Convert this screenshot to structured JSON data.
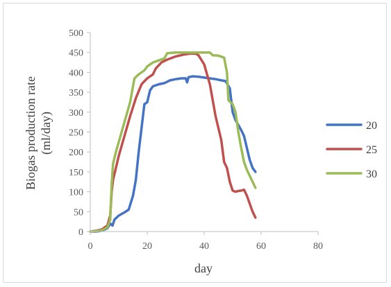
{
  "chart_data": {
    "type": "line",
    "title": "",
    "xlabel": "day",
    "ylabel_line1": "Biogas production rate",
    "ylabel_line2": "(ml/day)",
    "xlim": [
      0,
      80
    ],
    "ylim": [
      0,
      500
    ],
    "xticks": [
      0,
      20,
      40,
      60,
      80
    ],
    "yticks": [
      0,
      50,
      100,
      150,
      200,
      250,
      300,
      350,
      400,
      450,
      500
    ],
    "grid": false,
    "legend_position": "right",
    "series": [
      {
        "name": "20",
        "color": "#4472C4",
        "points": [
          [
            0,
            0
          ],
          [
            2,
            0
          ],
          [
            4,
            2
          ],
          [
            6,
            8
          ],
          [
            7,
            20
          ],
          [
            7.8,
            15
          ],
          [
            8.5,
            30
          ],
          [
            10,
            40
          ],
          [
            12,
            48
          ],
          [
            13.5,
            55
          ],
          [
            15,
            90
          ],
          [
            16,
            130
          ],
          [
            17,
            200
          ],
          [
            18,
            260
          ],
          [
            19,
            320
          ],
          [
            20,
            325
          ],
          [
            21,
            355
          ],
          [
            22,
            365
          ],
          [
            24,
            370
          ],
          [
            26,
            373
          ],
          [
            28,
            380
          ],
          [
            30,
            383
          ],
          [
            32,
            385
          ],
          [
            33.5,
            385
          ],
          [
            34,
            375
          ],
          [
            34.5,
            388
          ],
          [
            36,
            390
          ],
          [
            38,
            389
          ],
          [
            40,
            387
          ],
          [
            42,
            385
          ],
          [
            44,
            383
          ],
          [
            46,
            380
          ],
          [
            47.5,
            378
          ],
          [
            49,
            360
          ],
          [
            50,
            300
          ],
          [
            51,
            280
          ],
          [
            53,
            255
          ],
          [
            54,
            240
          ],
          [
            55,
            210
          ],
          [
            56,
            180
          ],
          [
            57,
            160
          ],
          [
            58,
            150
          ]
        ]
      },
      {
        "name": "25",
        "color": "#C0504D",
        "points": [
          [
            0,
            0
          ],
          [
            2,
            2
          ],
          [
            4,
            5
          ],
          [
            6,
            15
          ],
          [
            7,
            40
          ],
          [
            7.5,
            100
          ],
          [
            8,
            130
          ],
          [
            9,
            160
          ],
          [
            10,
            190
          ],
          [
            12,
            240
          ],
          [
            14,
            290
          ],
          [
            16,
            335
          ],
          [
            18,
            370
          ],
          [
            20,
            385
          ],
          [
            22,
            395
          ],
          [
            23,
            410
          ],
          [
            25,
            425
          ],
          [
            27,
            432
          ],
          [
            30,
            440
          ],
          [
            33,
            445
          ],
          [
            35,
            447
          ],
          [
            37,
            447
          ],
          [
            38,
            443
          ],
          [
            40,
            420
          ],
          [
            42,
            370
          ],
          [
            43,
            330
          ],
          [
            44,
            290
          ],
          [
            46,
            230
          ],
          [
            47,
            175
          ],
          [
            48,
            160
          ],
          [
            49,
            125
          ],
          [
            50,
            103
          ],
          [
            51,
            100
          ],
          [
            52,
            102
          ],
          [
            53,
            103
          ],
          [
            54,
            105
          ],
          [
            55,
            90
          ],
          [
            56,
            70
          ],
          [
            57,
            50
          ],
          [
            58,
            35
          ]
        ]
      },
      {
        "name": "30",
        "color": "#9BBB59",
        "points": [
          [
            0,
            0
          ],
          [
            2,
            1
          ],
          [
            4,
            3
          ],
          [
            6,
            10
          ],
          [
            7,
            30
          ],
          [
            7.5,
            120
          ],
          [
            8,
            170
          ],
          [
            9,
            200
          ],
          [
            10,
            225
          ],
          [
            12,
            275
          ],
          [
            14,
            325
          ],
          [
            15.5,
            385
          ],
          [
            17,
            395
          ],
          [
            19,
            405
          ],
          [
            20,
            415
          ],
          [
            22,
            425
          ],
          [
            24,
            430
          ],
          [
            26,
            435
          ],
          [
            27,
            448
          ],
          [
            30,
            450
          ],
          [
            35,
            450
          ],
          [
            40,
            450
          ],
          [
            42,
            450
          ],
          [
            43,
            443
          ],
          [
            45,
            442
          ],
          [
            47,
            437
          ],
          [
            48,
            400
          ],
          [
            48.5,
            330
          ],
          [
            50,
            320
          ],
          [
            51,
            300
          ],
          [
            52,
            250
          ],
          [
            53,
            210
          ],
          [
            54,
            175
          ],
          [
            55,
            155
          ],
          [
            56,
            140
          ],
          [
            57,
            125
          ],
          [
            58,
            110
          ]
        ]
      }
    ]
  }
}
